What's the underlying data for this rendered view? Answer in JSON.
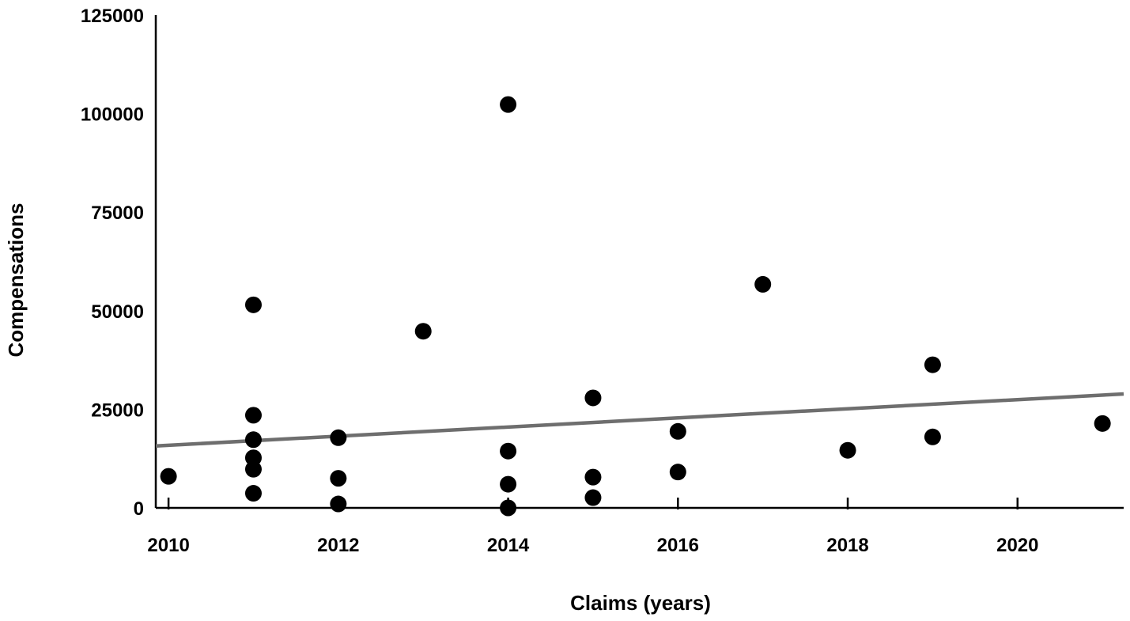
{
  "chart_data": {
    "type": "scatter",
    "title": "",
    "xlabel": "Claims (years)",
    "ylabel": "Compensations",
    "xlim": [
      2009.85,
      2021.25
    ],
    "ylim": [
      0,
      125000
    ],
    "x_ticks": [
      2010,
      2012,
      2014,
      2016,
      2018,
      2020
    ],
    "y_ticks": [
      0,
      25000,
      50000,
      75000,
      100000,
      125000
    ],
    "grid": false,
    "legend": "none",
    "series": [
      {
        "points": [
          {
            "x": 2010,
            "y": 8000
          },
          {
            "x": 2011,
            "y": 51500
          },
          {
            "x": 2011,
            "y": 23500
          },
          {
            "x": 2011,
            "y": 17300
          },
          {
            "x": 2011,
            "y": 12700
          },
          {
            "x": 2011,
            "y": 9800
          },
          {
            "x": 2011,
            "y": 3700
          },
          {
            "x": 2012,
            "y": 17800
          },
          {
            "x": 2012,
            "y": 7500
          },
          {
            "x": 2012,
            "y": 1000
          },
          {
            "x": 2013,
            "y": 44800
          },
          {
            "x": 2014,
            "y": 102300
          },
          {
            "x": 2014,
            "y": 14400
          },
          {
            "x": 2014,
            "y": 6000
          },
          {
            "x": 2014,
            "y": 0
          },
          {
            "x": 2015,
            "y": 27900
          },
          {
            "x": 2015,
            "y": 7800
          },
          {
            "x": 2015,
            "y": 2600
          },
          {
            "x": 2016,
            "y": 19400
          },
          {
            "x": 2016,
            "y": 9100
          },
          {
            "x": 2017,
            "y": 56700
          },
          {
            "x": 2018,
            "y": 14600
          },
          {
            "x": 2019,
            "y": 36300
          },
          {
            "x": 2019,
            "y": 18000
          },
          {
            "x": 2021,
            "y": 21400
          }
        ]
      }
    ],
    "trendline": {
      "type": "linear",
      "from": {
        "x": 2009.85,
        "y": 15700
      },
      "to": {
        "x": 2021.25,
        "y": 28900
      }
    },
    "colors": {
      "point": "#000000",
      "trendline": "#6e6e6e",
      "axis": "#000000"
    }
  }
}
